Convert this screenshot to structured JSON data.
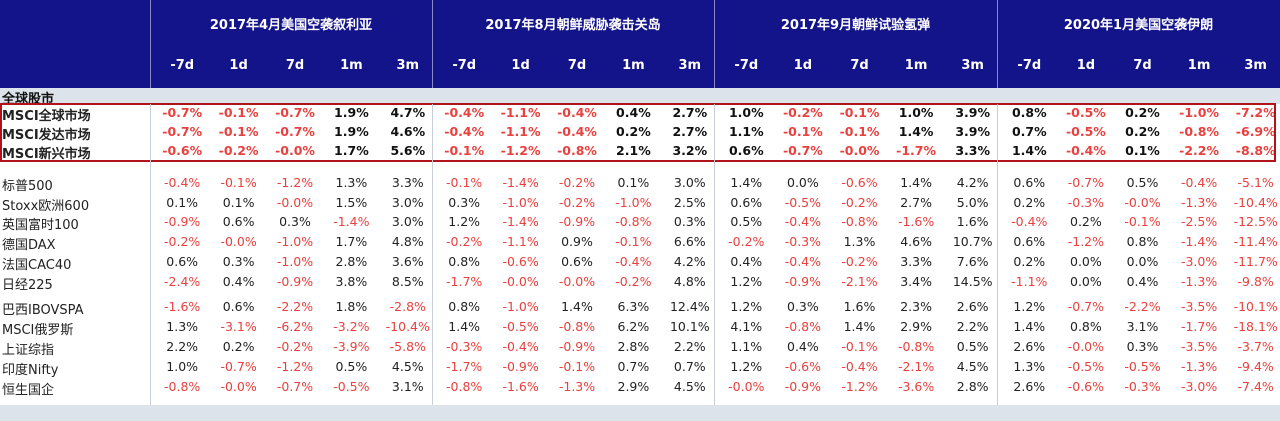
{
  "header": {
    "events": [
      "2017年4月美国空袭叙利亚",
      "2017年8月朝鲜威胁袭击关岛",
      "2017年9月朝鲜试验氢弹",
      "2020年1月美国空袭伊朗"
    ],
    "periods": [
      "-7d",
      "1d",
      "7d",
      "1m",
      "3m"
    ]
  },
  "section_title": "全球股市",
  "highlighted_rows": [
    {
      "label": "MSCI全球市场",
      "values": [
        "-0.7%",
        "-0.1%",
        "-0.7%",
        "1.9%",
        "4.7%",
        "-0.4%",
        "-1.1%",
        "-0.4%",
        "0.4%",
        "2.7%",
        "1.0%",
        "-0.2%",
        "-0.1%",
        "1.0%",
        "3.9%",
        "0.8%",
        "-0.5%",
        "0.2%",
        "-1.0%",
        "-7.2%"
      ]
    },
    {
      "label": "MSCI发达市场",
      "values": [
        "-0.7%",
        "-0.1%",
        "-0.7%",
        "1.9%",
        "4.6%",
        "-0.4%",
        "-1.1%",
        "-0.4%",
        "0.2%",
        "2.7%",
        "1.1%",
        "-0.1%",
        "-0.1%",
        "1.4%",
        "3.9%",
        "0.7%",
        "-0.5%",
        "0.2%",
        "-0.8%",
        "-6.9%"
      ]
    },
    {
      "label": "MSCI新兴市场",
      "values": [
        "-0.6%",
        "-0.2%",
        "-0.0%",
        "1.7%",
        "5.6%",
        "-0.1%",
        "-1.2%",
        "-0.8%",
        "2.1%",
        "3.2%",
        "0.6%",
        "-0.7%",
        "-0.0%",
        "-1.7%",
        "3.3%",
        "1.4%",
        "-0.4%",
        "0.1%",
        "-2.2%",
        "-8.8%"
      ]
    }
  ],
  "rows": [
    {
      "label": "标普500",
      "values": [
        "-0.4%",
        "-0.1%",
        "-1.2%",
        "1.3%",
        "3.3%",
        "-0.1%",
        "-1.4%",
        "-0.2%",
        "0.1%",
        "3.0%",
        "1.4%",
        "0.0%",
        "-0.6%",
        "1.4%",
        "4.2%",
        "0.6%",
        "-0.7%",
        "0.5%",
        "-0.4%",
        "-5.1%"
      ]
    },
    {
      "label": "Stoxx欧洲600",
      "values": [
        "0.1%",
        "0.1%",
        "-0.0%",
        "1.5%",
        "3.0%",
        "0.3%",
        "-1.0%",
        "-0.2%",
        "-1.0%",
        "2.5%",
        "0.6%",
        "-0.5%",
        "-0.2%",
        "2.7%",
        "5.0%",
        "0.2%",
        "-0.3%",
        "-0.0%",
        "-1.3%",
        "-10.4%"
      ]
    },
    {
      "label": "英国富时100",
      "values": [
        "-0.9%",
        "0.6%",
        "0.3%",
        "-1.4%",
        "3.0%",
        "1.2%",
        "-1.4%",
        "-0.9%",
        "-0.8%",
        "0.3%",
        "0.5%",
        "-0.4%",
        "-0.8%",
        "-1.6%",
        "1.6%",
        "-0.4%",
        "0.2%",
        "-0.1%",
        "-2.5%",
        "-12.5%"
      ]
    },
    {
      "label": "德国DAX",
      "values": [
        "-0.2%",
        "-0.0%",
        "-1.0%",
        "1.7%",
        "4.8%",
        "-0.2%",
        "-1.1%",
        "0.9%",
        "-0.1%",
        "6.6%",
        "-0.2%",
        "-0.3%",
        "1.3%",
        "4.6%",
        "10.7%",
        "0.6%",
        "-1.2%",
        "0.8%",
        "-1.4%",
        "-11.4%"
      ]
    },
    {
      "label": "法国CAC40",
      "values": [
        "0.6%",
        "0.3%",
        "-1.0%",
        "2.8%",
        "3.6%",
        "0.8%",
        "-0.6%",
        "0.6%",
        "-0.4%",
        "4.2%",
        "0.4%",
        "-0.4%",
        "-0.2%",
        "3.3%",
        "7.6%",
        "0.2%",
        "0.0%",
        "0.0%",
        "-3.0%",
        "-11.7%"
      ]
    },
    {
      "label": "日经225",
      "values": [
        "-2.4%",
        "0.4%",
        "-0.9%",
        "3.8%",
        "8.5%",
        "-1.7%",
        "-0.0%",
        "-0.0%",
        "-0.2%",
        "4.8%",
        "1.2%",
        "-0.9%",
        "-2.1%",
        "3.4%",
        "14.5%",
        "-1.1%",
        "0.0%",
        "0.4%",
        "-1.3%",
        "-9.8%"
      ]
    },
    {
      "label": "巴西IBOVSPA",
      "values": [
        "-1.6%",
        "0.6%",
        "-2.2%",
        "1.8%",
        "-2.8%",
        "0.8%",
        "-1.0%",
        "1.4%",
        "6.3%",
        "12.4%",
        "1.2%",
        "0.3%",
        "1.6%",
        "2.3%",
        "2.6%",
        "1.2%",
        "-0.7%",
        "-2.2%",
        "-3.5%",
        "-10.1%"
      ]
    },
    {
      "label": "MSCI俄罗斯",
      "values": [
        "1.3%",
        "-3.1%",
        "-6.2%",
        "-3.2%",
        "-10.4%",
        "1.4%",
        "-0.5%",
        "-0.8%",
        "6.2%",
        "10.1%",
        "4.1%",
        "-0.8%",
        "1.4%",
        "2.9%",
        "2.2%",
        "1.4%",
        "0.8%",
        "3.1%",
        "-1.7%",
        "-18.1%"
      ]
    },
    {
      "label": "上证综指",
      "values": [
        "2.2%",
        "0.2%",
        "-0.2%",
        "-3.9%",
        "-5.8%",
        "-0.3%",
        "-0.4%",
        "-0.9%",
        "2.8%",
        "2.2%",
        "1.1%",
        "0.4%",
        "-0.1%",
        "-0.8%",
        "0.5%",
        "2.6%",
        "-0.0%",
        "0.3%",
        "-3.5%",
        "-3.7%"
      ]
    },
    {
      "label": "印度Nifty",
      "values": [
        "1.0%",
        "-0.7%",
        "-1.2%",
        "0.5%",
        "4.5%",
        "-1.7%",
        "-0.9%",
        "-0.1%",
        "0.7%",
        "0.7%",
        "1.2%",
        "-0.6%",
        "-0.4%",
        "-2.1%",
        "4.5%",
        "1.3%",
        "-0.5%",
        "-0.5%",
        "-1.3%",
        "-9.4%"
      ]
    },
    {
      "label": "恒生国企",
      "values": [
        "-0.8%",
        "-0.0%",
        "-0.7%",
        "-0.5%",
        "3.1%",
        "-0.8%",
        "-1.6%",
        "-1.3%",
        "2.9%",
        "4.5%",
        "-0.0%",
        "-0.9%",
        "-1.2%",
        "-3.6%",
        "2.8%",
        "2.6%",
        "-0.6%",
        "-0.3%",
        "-3.0%",
        "-7.4%"
      ]
    }
  ],
  "colors": {
    "header_bg": "#14148a",
    "negative": "#e8413f",
    "highlight_border": "#b0141a",
    "section_bg": "#dde3ea"
  }
}
